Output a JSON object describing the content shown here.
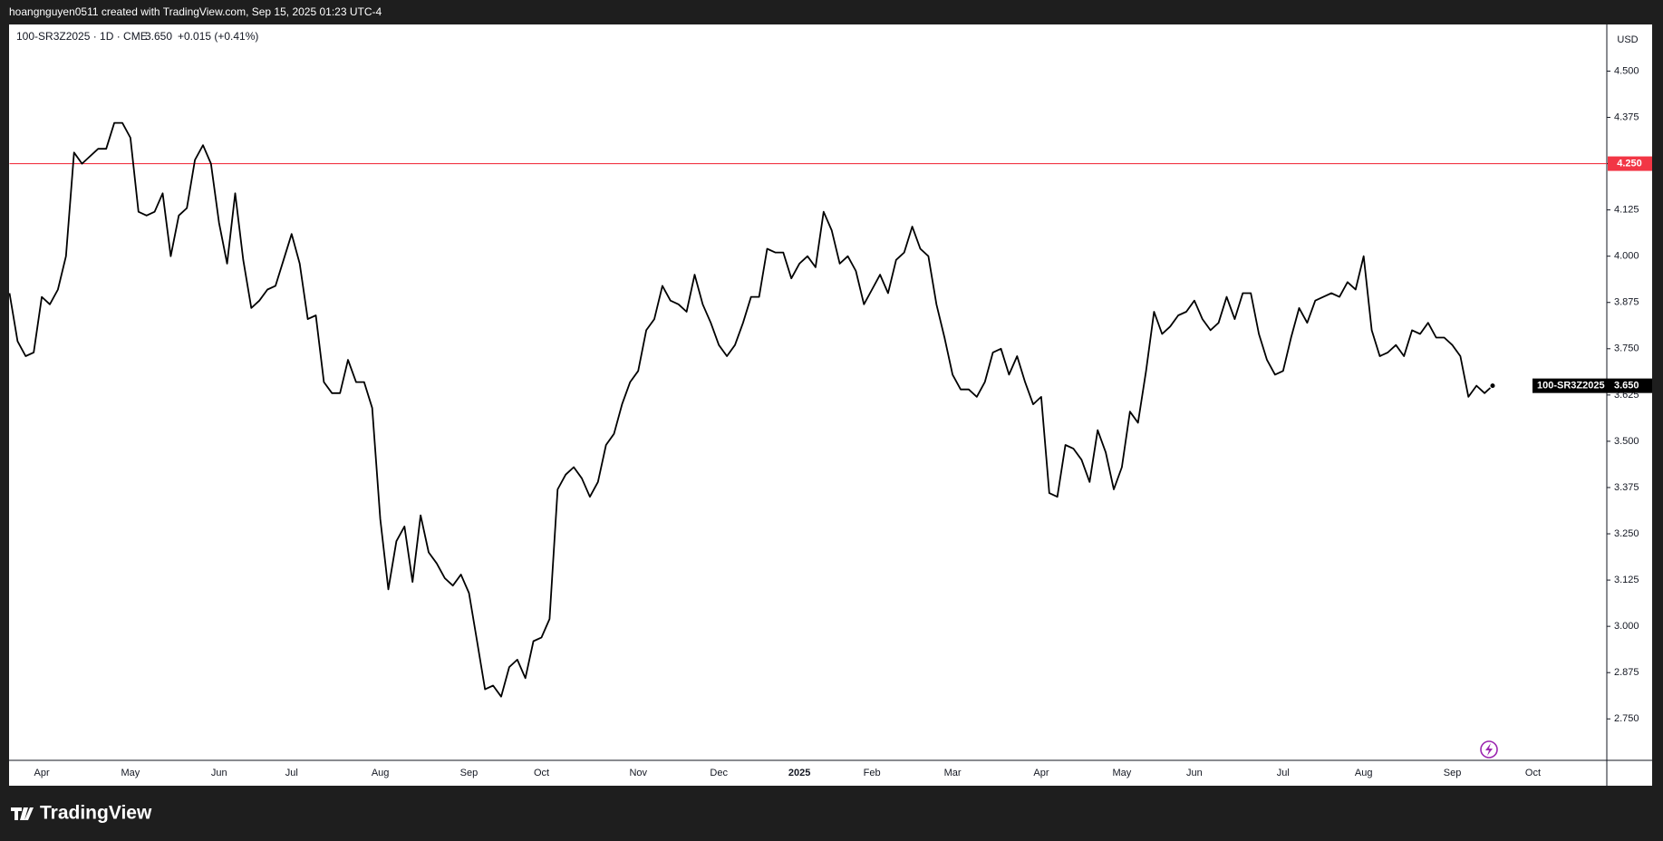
{
  "header": {
    "text": "hoangnguyen0511 created with TradingView.com, Sep 15, 2025 01:23 UTC-4"
  },
  "footer": {
    "logo": "TradingView"
  },
  "chart_data": {
    "type": "line",
    "legend": {
      "symbol": "100-SR3Z2025 · 1D · CME",
      "price": "3.650",
      "change": "+0.015 (+0.41%)"
    },
    "y_unit": "USD",
    "categories": [
      null,
      null,
      null,
      null,
      "Apr",
      null,
      null,
      null,
      null,
      null,
      null,
      null,
      null,
      null,
      null,
      "May",
      null,
      null,
      null,
      null,
      null,
      null,
      null,
      null,
      null,
      null,
      "Jun",
      null,
      null,
      null,
      null,
      null,
      null,
      null,
      null,
      "Jul",
      null,
      null,
      null,
      null,
      null,
      null,
      null,
      null,
      null,
      null,
      "Aug",
      null,
      null,
      null,
      null,
      null,
      null,
      null,
      null,
      null,
      null,
      "Sep",
      null,
      null,
      null,
      null,
      null,
      null,
      null,
      null,
      "Oct",
      null,
      null,
      null,
      null,
      null,
      null,
      null,
      null,
      null,
      null,
      null,
      "Nov",
      null,
      null,
      null,
      null,
      null,
      null,
      null,
      null,
      null,
      "Dec",
      null,
      null,
      null,
      null,
      null,
      null,
      null,
      null,
      null,
      "2025",
      null,
      null,
      null,
      null,
      null,
      null,
      null,
      null,
      "Feb",
      null,
      null,
      null,
      null,
      null,
      null,
      null,
      null,
      null,
      "Mar",
      null,
      null,
      null,
      null,
      null,
      null,
      null,
      null,
      null,
      null,
      "Apr",
      null,
      null,
      null,
      null,
      null,
      null,
      null,
      null,
      null,
      "May",
      null,
      null,
      null,
      null,
      null,
      null,
      null,
      null,
      "Jun",
      null,
      null,
      null,
      null,
      null,
      null,
      null,
      null,
      null,
      null,
      "Jul",
      null,
      null,
      null,
      null,
      null,
      null,
      null,
      null,
      null,
      "Aug",
      null,
      null,
      null,
      null,
      null,
      null,
      null,
      null,
      null,
      null,
      "Sep",
      null,
      null,
      null,
      null,
      null,
      null,
      null,
      null,
      null,
      "Oct"
    ],
    "series": [
      {
        "name": "100-SR3Z2025",
        "color": "#000000",
        "values": [
          3.9,
          3.77,
          3.73,
          3.74,
          3.89,
          3.87,
          3.91,
          4.0,
          4.28,
          4.25,
          4.27,
          4.29,
          4.29,
          4.36,
          4.36,
          4.32,
          4.12,
          4.11,
          4.12,
          4.17,
          4.0,
          4.11,
          4.13,
          4.26,
          4.3,
          4.25,
          4.09,
          3.98,
          4.17,
          3.99,
          3.86,
          3.88,
          3.91,
          3.92,
          3.99,
          4.06,
          3.98,
          3.83,
          3.84,
          3.66,
          3.63,
          3.63,
          3.72,
          3.66,
          3.66,
          3.59,
          3.29,
          3.1,
          3.23,
          3.27,
          3.12,
          3.3,
          3.2,
          3.17,
          3.13,
          3.11,
          3.14,
          3.09,
          2.96,
          2.83,
          2.84,
          2.81,
          2.89,
          2.91,
          2.86,
          2.96,
          2.97,
          3.02,
          3.37,
          3.41,
          3.43,
          3.4,
          3.35,
          3.39,
          3.49,
          3.52,
          3.6,
          3.66,
          3.69,
          3.8,
          3.83,
          3.92,
          3.88,
          3.87,
          3.85,
          3.95,
          3.87,
          3.82,
          3.76,
          3.73,
          3.76,
          3.82,
          3.89,
          3.89,
          4.02,
          4.01,
          4.01,
          3.94,
          3.98,
          4.0,
          3.97,
          4.12,
          4.07,
          3.98,
          4.0,
          3.96,
          3.87,
          3.91,
          3.95,
          3.9,
          3.99,
          4.01,
          4.08,
          4.02,
          4.0,
          3.87,
          3.78,
          3.68,
          3.64,
          3.64,
          3.62,
          3.66,
          3.74,
          3.75,
          3.68,
          3.73,
          3.66,
          3.6,
          3.62,
          3.36,
          3.35,
          3.49,
          3.48,
          3.45,
          3.39,
          3.53,
          3.47,
          3.37,
          3.43,
          3.58,
          3.55,
          3.69,
          3.85,
          3.79,
          3.81,
          3.84,
          3.85,
          3.88,
          3.83,
          3.8,
          3.82,
          3.89,
          3.83,
          3.9,
          3.9,
          3.79,
          3.72,
          3.68,
          3.69,
          3.78,
          3.86,
          3.82,
          3.88,
          3.89,
          3.9,
          3.89,
          3.93,
          3.91,
          4.0,
          3.8,
          3.73,
          3.74,
          3.76,
          3.73,
          3.8,
          3.79,
          3.82,
          3.78,
          3.78,
          3.76,
          3.73,
          3.62,
          3.65,
          3.63,
          3.65,
          null,
          null,
          null,
          null,
          null
        ]
      }
    ],
    "last_price": {
      "value": 3.65,
      "label": "3.650"
    },
    "hline": {
      "value": 4.25,
      "label": "4.250",
      "color": "#f23645"
    },
    "ylim": [
      2.638,
      4.626
    ],
    "yticks": [
      {
        "value": 2.75,
        "label": "2.750"
      },
      2.875,
      {
        "value": 3,
        "label": "3.000"
      },
      3.125,
      {
        "value": 3.25,
        "label": "3.250"
      },
      3.375,
      {
        "value": 3.5,
        "label": "3.500"
      },
      3.625,
      {
        "value": 3.75,
        "label": "3.750"
      },
      3.875,
      {
        "value": 4,
        "label": "4.000"
      },
      4.125,
      {
        "value": 4.25,
        "label": "4.250"
      },
      4.375,
      {
        "value": 4.5,
        "label": "4.500"
      }
    ],
    "grid": false
  }
}
